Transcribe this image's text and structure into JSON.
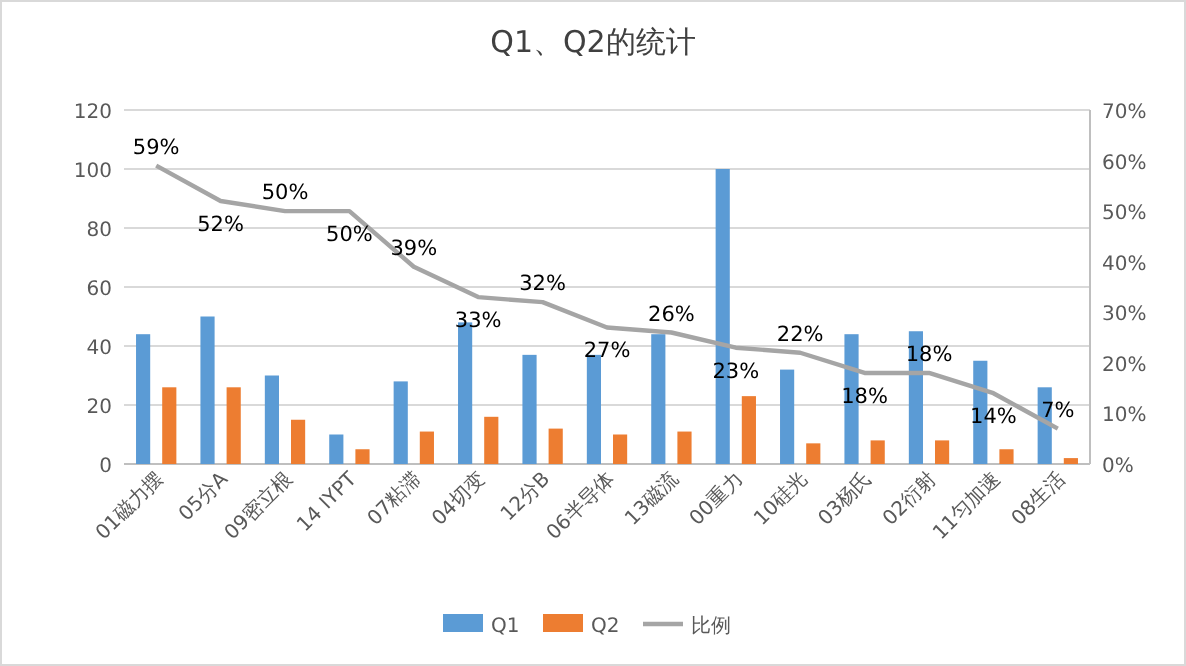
{
  "chart_data": {
    "type": "bar",
    "title": "Q1、Q2的统计",
    "categories": [
      "01磁力摆",
      "05分A",
      "09密立根",
      "14 IYPT",
      "07粘滞",
      "04切变",
      "12分B",
      "06半导体",
      "13磁流",
      "00重力",
      "10硅光",
      "03杨氏",
      "02衍射",
      "11匀加速",
      "08生活"
    ],
    "series": [
      {
        "name": "Q1",
        "color": "#5b9bd5",
        "values": [
          44,
          50,
          30,
          10,
          28,
          48,
          37,
          37,
          44,
          100,
          32,
          44,
          45,
          35,
          26
        ]
      },
      {
        "name": "Q2",
        "color": "#ed7d31",
        "values": [
          26,
          26,
          15,
          5,
          11,
          16,
          12,
          10,
          11,
          23,
          7,
          8,
          8,
          5,
          2
        ]
      },
      {
        "name": "比例",
        "type": "line",
        "axis": "y2",
        "color": "#a5a5a5",
        "marker": "none",
        "values": [
          59,
          52,
          50,
          50,
          39,
          33,
          32,
          27,
          26,
          23,
          22,
          18,
          18,
          14,
          7
        ],
        "value_labels": [
          "59%",
          "52%",
          "50%",
          "50%",
          "39%",
          "33%",
          "32%",
          "27%",
          "26%",
          "23%",
          "22%",
          "18%",
          "18%",
          "14%",
          "7%"
        ]
      }
    ],
    "ylim": [
      0,
      120
    ],
    "yticks": [
      0,
      20,
      40,
      60,
      80,
      100,
      120
    ],
    "y2lim": [
      0,
      70
    ],
    "y2ticks": [
      {
        "value": 0,
        "label": "0%"
      },
      {
        "value": 10,
        "label": "10%"
      },
      {
        "value": 20,
        "label": "20%"
      },
      {
        "value": 30,
        "label": "30%"
      },
      {
        "value": 40,
        "label": "40%"
      },
      {
        "value": 50,
        "label": "50%"
      },
      {
        "value": 60,
        "label": "60%"
      },
      {
        "value": 70,
        "label": "70%"
      }
    ],
    "grid": "y",
    "legend": "bottom"
  }
}
